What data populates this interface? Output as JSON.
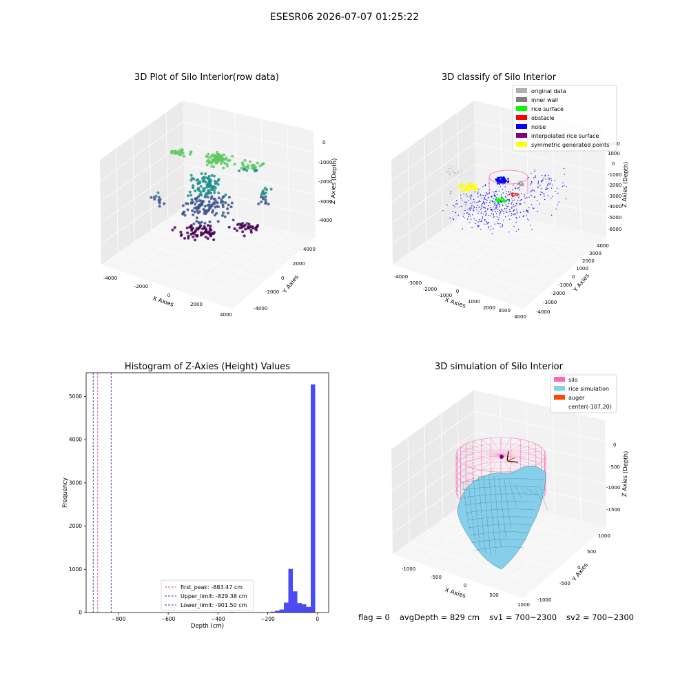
{
  "page_title": "ESESR06 2026-07-07 01:25:22",
  "footer": {
    "flag": "flag = 0",
    "avg_depth": "avgDepth = 829 cm",
    "sv1": "sv1 = 700~2300",
    "sv2": "sv2 = 700~2300"
  },
  "chart_data": [
    {
      "id": "raw",
      "type": "scatter",
      "title": "3D Plot of Silo Interior(row data)",
      "xlabel": "X Axies",
      "ylabel": "Y Axies",
      "zlabel": "Z Axies (Depth)",
      "x_ticks": [
        "-4000",
        "-2000",
        "0",
        "2000",
        "4000"
      ],
      "y_ticks": [
        "-4000",
        "-2000",
        "0",
        "2000",
        "4000"
      ],
      "z_ticks": [
        "0",
        "-1000",
        "-2000",
        "-3000",
        "-4000"
      ],
      "colormap": [
        "#440154",
        "#3b528b",
        "#21908d",
        "#5dc962",
        "#fde725"
      ],
      "grid": true
    },
    {
      "id": "classify",
      "type": "scatter",
      "title": "3D classify of Silo Interior",
      "xlabel": "X Axies",
      "ylabel": "Y Axies",
      "zlabel": "Z Axies (Depth)",
      "x_ticks": [
        "-4000",
        "-3000",
        "-2000",
        "-1000",
        "0",
        "1000",
        "2000",
        "3000",
        "4000"
      ],
      "y_ticks": [
        "-4000",
        "-3000",
        "-2000",
        "-1000",
        "0",
        "1000",
        "2000",
        "3000",
        "4000"
      ],
      "z_ticks": [
        "2000",
        "1000",
        "0",
        "-1000",
        "-2000",
        "-3000",
        "-4000",
        "-5000",
        "-6000"
      ],
      "legend_position": "top-right",
      "legend": [
        {
          "label": "original data",
          "color": "#b0b0b0"
        },
        {
          "label": "inner wall",
          "color": "#808080"
        },
        {
          "label": "rice surface",
          "color": "#00ff00"
        },
        {
          "label": "obstacle",
          "color": "#ff0000"
        },
        {
          "label": "noise",
          "color": "#0000ff"
        },
        {
          "label": "interpolated rice surface",
          "color": "#800080"
        },
        {
          "label": "symmetric generated points",
          "color": "#ffff00"
        }
      ],
      "grid": true
    },
    {
      "id": "histogram",
      "type": "bar",
      "title": "Histogram of Z-Axies (Height) Values",
      "xlabel": "Depth (cm)",
      "ylabel": "Frequency",
      "xlim": [
        -930,
        45
      ],
      "ylim": [
        0,
        5550
      ],
      "x_ticks": [
        -800,
        -600,
        -400,
        -200,
        0
      ],
      "y_ticks": [
        0,
        1000,
        2000,
        3000,
        4000,
        5000
      ],
      "bin_width": 18,
      "bins": [
        {
          "x": -423,
          "count": 8
        },
        {
          "x": -387,
          "count": 5
        },
        {
          "x": -351,
          "count": 12
        },
        {
          "x": -315,
          "count": 4
        },
        {
          "x": -279,
          "count": 3
        },
        {
          "x": -243,
          "count": 5
        },
        {
          "x": -207,
          "count": 10
        },
        {
          "x": -189,
          "count": 20
        },
        {
          "x": -171,
          "count": 40
        },
        {
          "x": -153,
          "count": 70
        },
        {
          "x": -135,
          "count": 230
        },
        {
          "x": -117,
          "count": 1010
        },
        {
          "x": -99,
          "count": 490
        },
        {
          "x": -81,
          "count": 220
        },
        {
          "x": -63,
          "count": 190
        },
        {
          "x": -45,
          "count": 130
        },
        {
          "x": -27,
          "count": 5280
        }
      ],
      "bar_color": "#4b4bf2",
      "reference_lines": [
        {
          "label": "first_peak: -883.47 cm",
          "value": -883.47,
          "color": "#d05070"
        },
        {
          "label": "Upper_limit: -829.38 cm",
          "value": -829.38,
          "color": "#3030c0"
        },
        {
          "label": "Lower_limit: -901.50 cm",
          "value": -901.5,
          "color": "#3030c0"
        }
      ],
      "legend_position": "bottom-center"
    },
    {
      "id": "simulation",
      "type": "surface",
      "title": "3D simulation of Silo Interior",
      "xlabel": "X Axies",
      "ylabel": "Y Axies",
      "zlabel": "Z Axies (Depth)",
      "x_ticks": [
        "-1000",
        "-500",
        "0",
        "500",
        "1000"
      ],
      "y_ticks": [
        "-1000",
        "-500",
        "0",
        "500",
        "1000"
      ],
      "z_ticks": [
        "0",
        "-500",
        "-1000",
        "-1500"
      ],
      "legend_position": "top-right",
      "legend": [
        {
          "label": "silo",
          "color": "#ff69b4"
        },
        {
          "label": "rice simulation",
          "color": "#87ceeb"
        },
        {
          "label": "auger",
          "color": "#ff4500"
        },
        {
          "label": "center(-107,20)",
          "color": ""
        }
      ],
      "grid": true
    }
  ]
}
